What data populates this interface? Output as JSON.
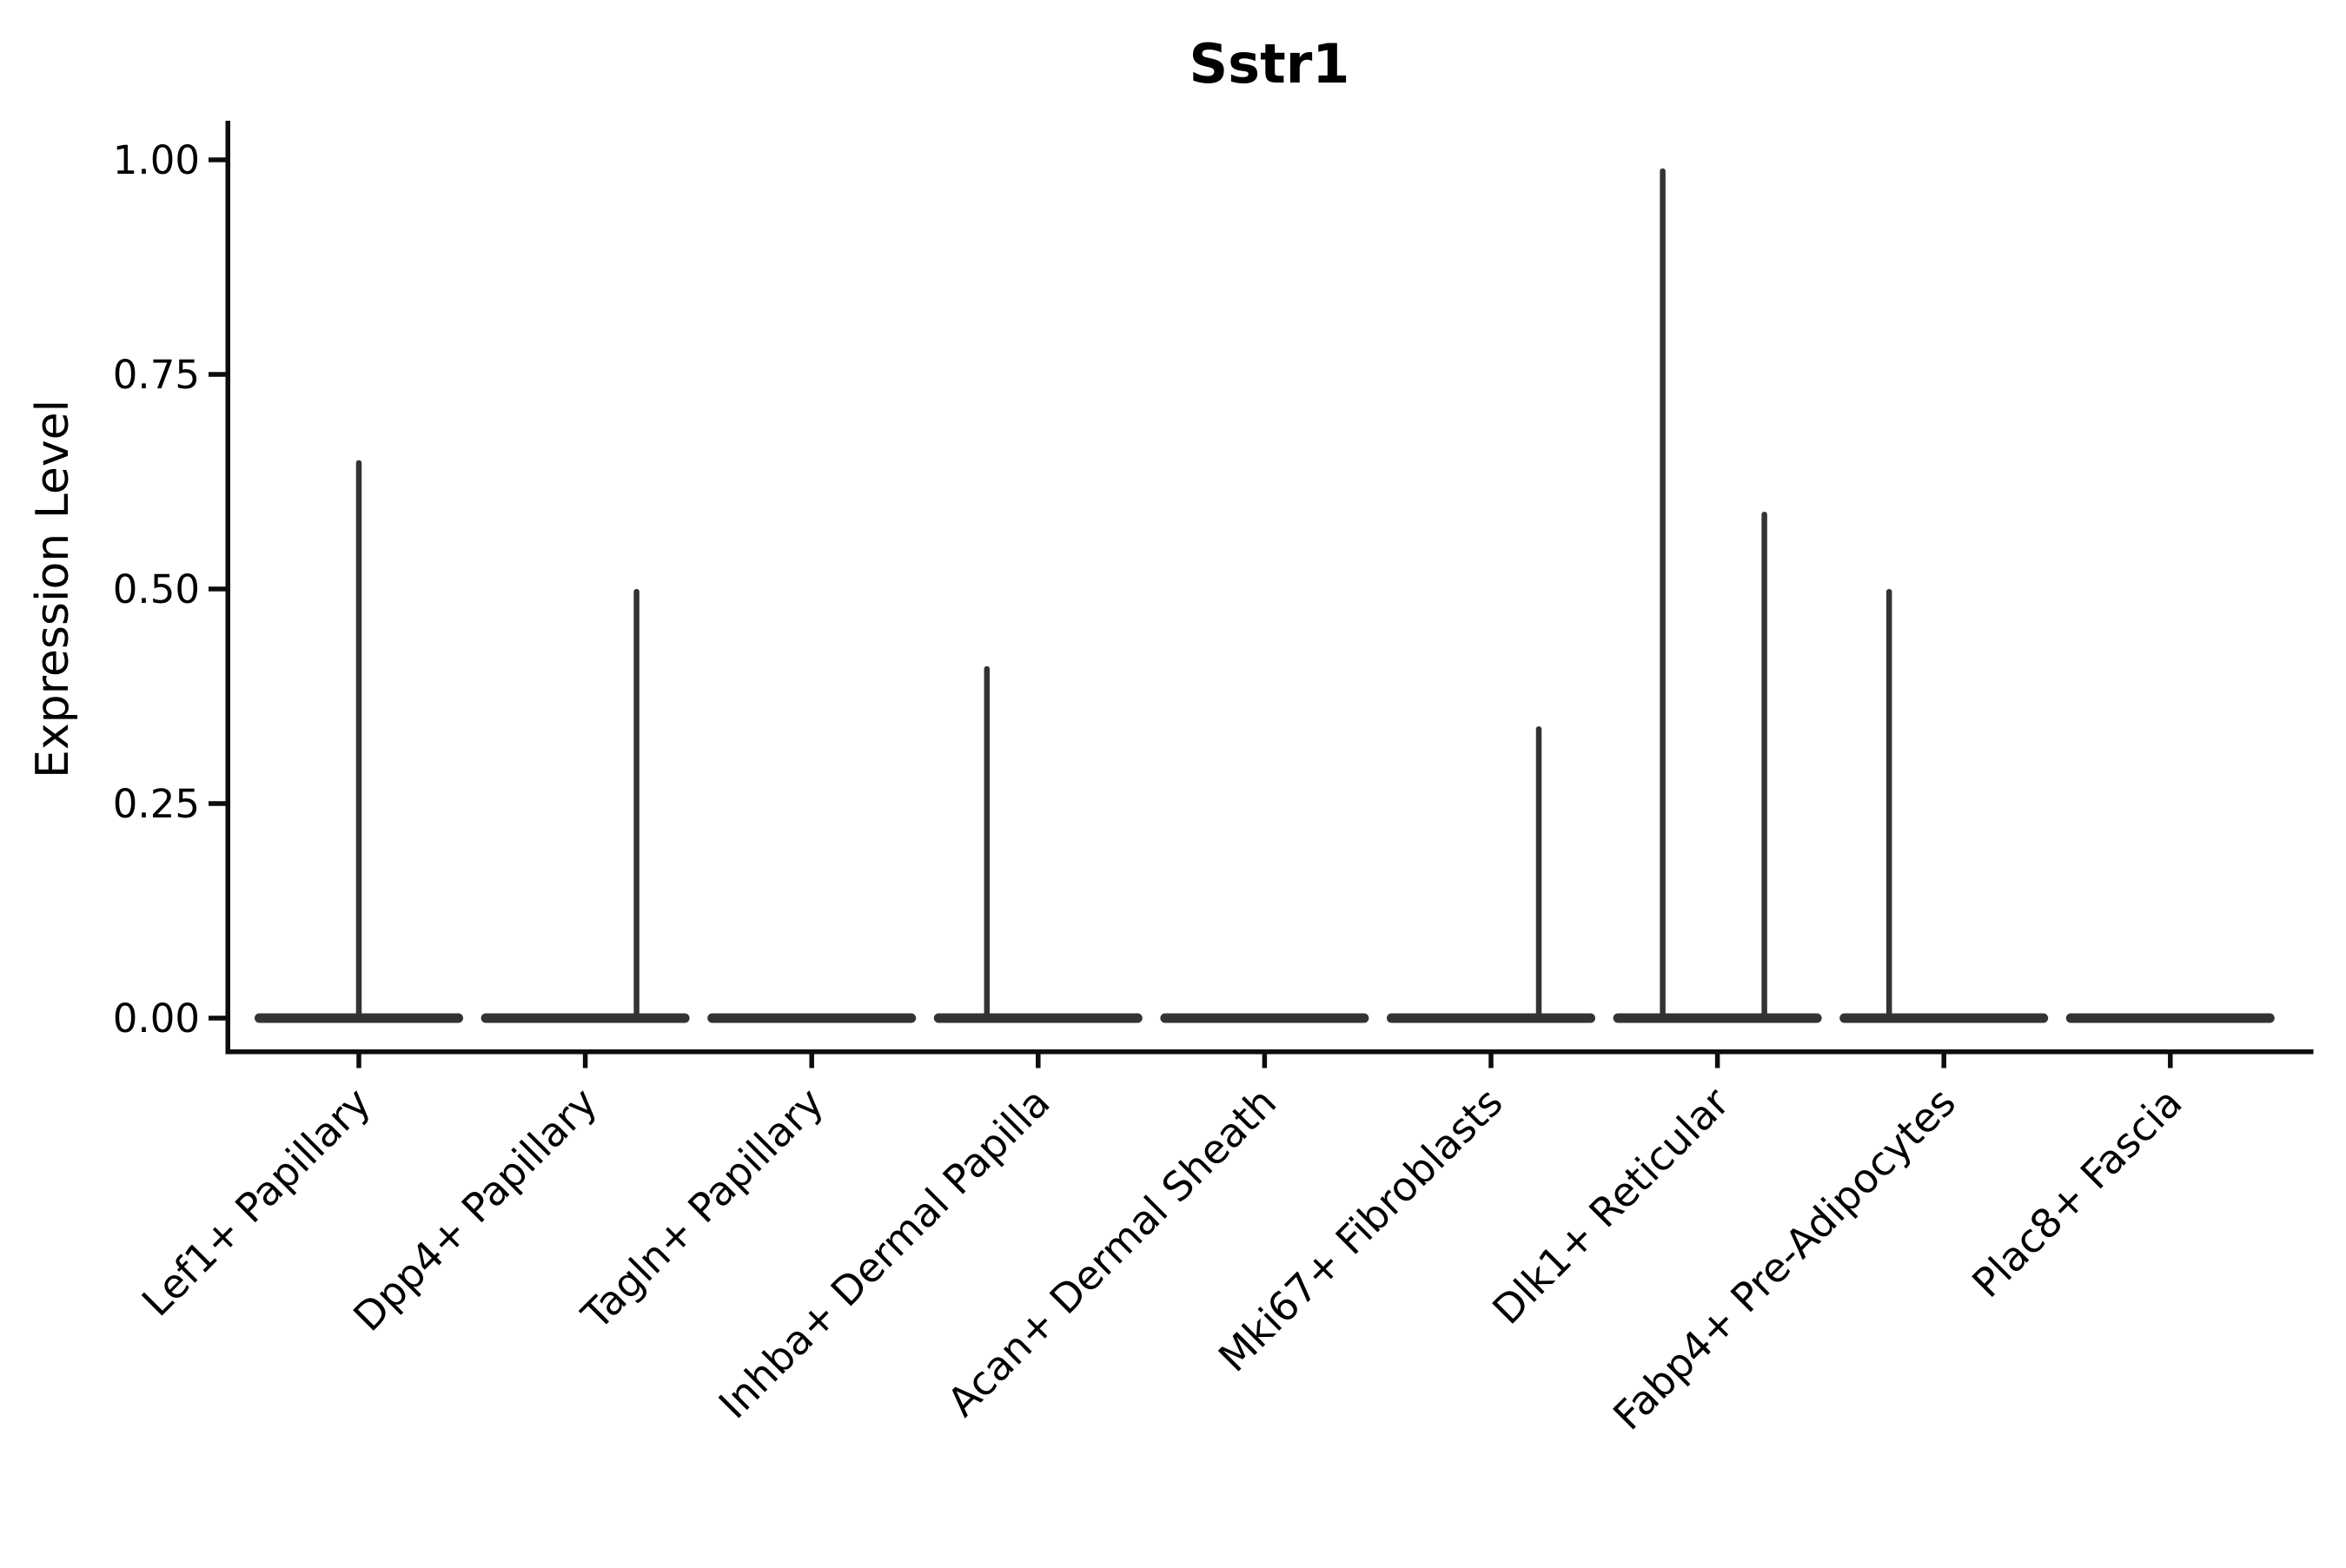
{
  "chart_data": {
    "type": "violin",
    "title": "Sstr1",
    "xlabel": "",
    "ylabel": "Expression Level",
    "grid": false,
    "legend_position": "none",
    "x_rotation": 45,
    "ylim": [
      -0.04,
      1.05
    ],
    "ytick_labels": [
      "1.00",
      "0.75",
      "0.50",
      "0.25",
      "0.00"
    ],
    "ytick_values": [
      1.0,
      0.75,
      0.5,
      0.25,
      0.0
    ],
    "violin_color": "#333333",
    "axis_color": "#0d0d0d",
    "categories": [
      {
        "label": "Lef1+ Papillary",
        "base_value": 0.0,
        "spikes": [
          {
            "dx": 0,
            "value": 0.65
          }
        ]
      },
      {
        "label": "Dpp4+ Papillary",
        "base_value": 0.0,
        "spikes": [
          {
            "dx": 59,
            "value": 0.5
          }
        ]
      },
      {
        "label": "Tagln+ Papillary",
        "base_value": 0.0,
        "spikes": []
      },
      {
        "label": "Inhba+ Dermal Papilla",
        "base_value": 0.0,
        "spikes": [
          {
            "dx": -59,
            "value": 0.41
          }
        ]
      },
      {
        "label": "Acan+ Dermal Sheath",
        "base_value": 0.0,
        "spikes": []
      },
      {
        "label": "Mki67+ Fibroblasts",
        "base_value": 0.0,
        "spikes": [
          {
            "dx": 55,
            "value": 0.34
          }
        ]
      },
      {
        "label": "Dlk1+ Reticular",
        "base_value": 0.0,
        "spikes": [
          {
            "dx": -63,
            "value": 0.99
          },
          {
            "dx": 54,
            "value": 0.59
          }
        ]
      },
      {
        "label": "Fabp4+ Pre-Adipocytes",
        "base_value": 0.0,
        "spikes": [
          {
            "dx": -63,
            "value": 0.5
          }
        ]
      },
      {
        "label": "Plac8+ Fascia",
        "base_value": 0.0,
        "spikes": []
      }
    ]
  }
}
